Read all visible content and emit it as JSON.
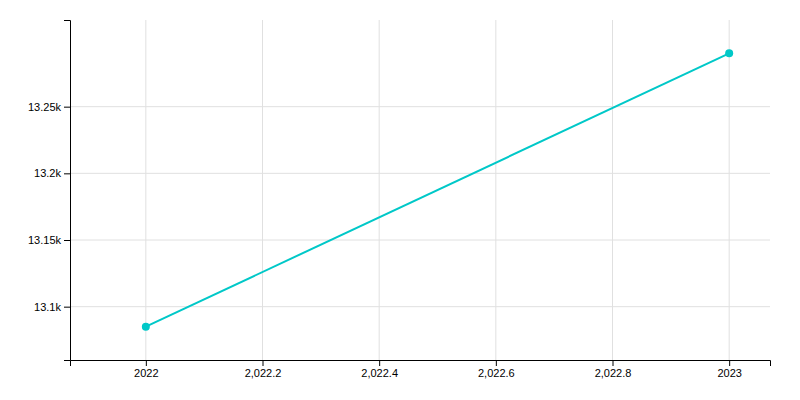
{
  "chart_data": {
    "type": "line",
    "x": [
      2022,
      2023
    ],
    "values": [
      13085,
      13290
    ],
    "color": "#00C8C8",
    "marker": "circle",
    "grid": true,
    "xlim": [
      2021.87,
      2023.07
    ],
    "ylim": [
      13060,
      13315
    ],
    "xticks": [
      2022,
      {
        "value": 2022.2,
        "label": "2,022.2"
      },
      {
        "value": 2022.4,
        "label": "2,022.4"
      },
      {
        "value": 2022.6,
        "label": "2,022.6"
      },
      {
        "value": 2022.8,
        "label": "2,022.8"
      },
      2023
    ],
    "yticks": [
      {
        "value": 13100,
        "label": "13.1k"
      },
      {
        "value": 13150,
        "label": "13.15k"
      },
      {
        "value": 13200,
        "label": "13.2k"
      },
      {
        "value": 13250,
        "label": "13.25k"
      }
    ]
  }
}
